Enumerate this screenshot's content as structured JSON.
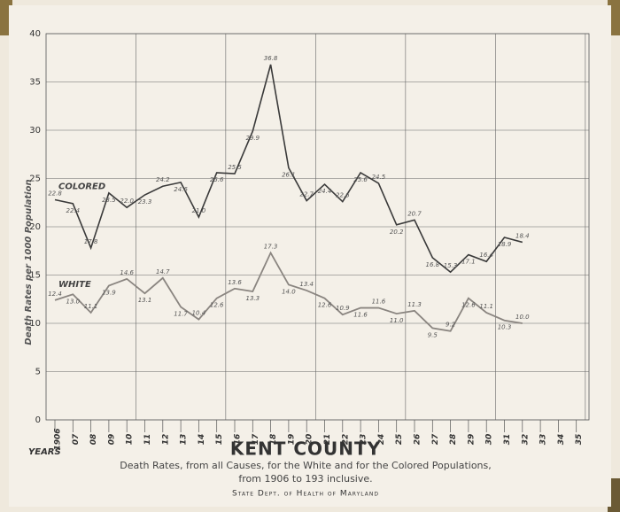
{
  "chart_data": {
    "type": "line",
    "title": "KENT COUNTY",
    "subtitle": "Death Rates, from all Causes, for the White and for the Colored Populations, from 1906 to 193 inclusive.",
    "source": "State Dept. of Health of Maryland",
    "y_label": "Death Rates per 1000 Population",
    "x_label": "YEARS",
    "categories": [
      "1906",
      "07",
      "08",
      "09",
      "10",
      "11",
      "12",
      "13",
      "14",
      "15",
      "16",
      "17",
      "18",
      "19",
      "20",
      "21",
      "22",
      "23",
      "24",
      "25",
      "26",
      "27",
      "28",
      "29",
      "30",
      "31",
      "32",
      "33",
      "34",
      "35"
    ],
    "series": [
      {
        "name": "COLORED",
        "color": "#3a3a3a",
        "values": [
          22.8,
          22.4,
          17.8,
          23.5,
          22.0,
          23.3,
          24.2,
          24.6,
          21.0,
          25.6,
          25.5,
          29.9,
          36.8,
          26.1,
          22.7,
          24.4,
          22.6,
          25.6,
          24.5,
          20.2,
          20.7,
          16.8,
          15.3,
          17.1,
          16.4,
          18.9,
          18.4,
          null,
          null,
          null
        ],
        "value_labels": [
          "22.8",
          "22.4",
          "17.8",
          "23.5",
          "22.0",
          "23.3",
          "24.2",
          "24.6",
          "21.0",
          "25.6",
          "25.5",
          "29.9",
          "36.8",
          "26.1",
          "22.7",
          "24.4",
          "22.6",
          "25.6",
          "24.5",
          "20.2",
          "20.7",
          "16.8",
          "15.3",
          "17.1",
          "16.4",
          "18.9",
          "18.4",
          null,
          null,
          null
        ]
      },
      {
        "name": "WHITE",
        "color": "#8a8580",
        "values": [
          12.4,
          13.0,
          11.1,
          13.9,
          14.6,
          13.1,
          14.7,
          11.7,
          10.4,
          12.6,
          13.6,
          13.3,
          17.3,
          14.0,
          13.4,
          12.6,
          10.9,
          11.6,
          11.6,
          11.0,
          11.3,
          9.5,
          9.2,
          12.6,
          11.1,
          10.3,
          10.0,
          null,
          null,
          null
        ],
        "value_labels": [
          "12.4",
          "13.0",
          "11.1",
          "13.9",
          "14.6",
          "13.1",
          "14.7",
          "11.7",
          "10.4",
          "12.6",
          "13.6",
          "13.3",
          "17.3",
          "14.0",
          "13.4",
          "12.6",
          "10.9",
          "11.6",
          "11.6",
          "11.0",
          "11.3",
          "9.5",
          "9.2",
          "12.6",
          "11.1",
          "10.3",
          "10.0",
          null,
          null,
          null
        ]
      }
    ],
    "ylim": [
      0,
      40
    ],
    "yticks": [
      0,
      5,
      10,
      15,
      20,
      25,
      30,
      35,
      40
    ],
    "grid": true
  }
}
